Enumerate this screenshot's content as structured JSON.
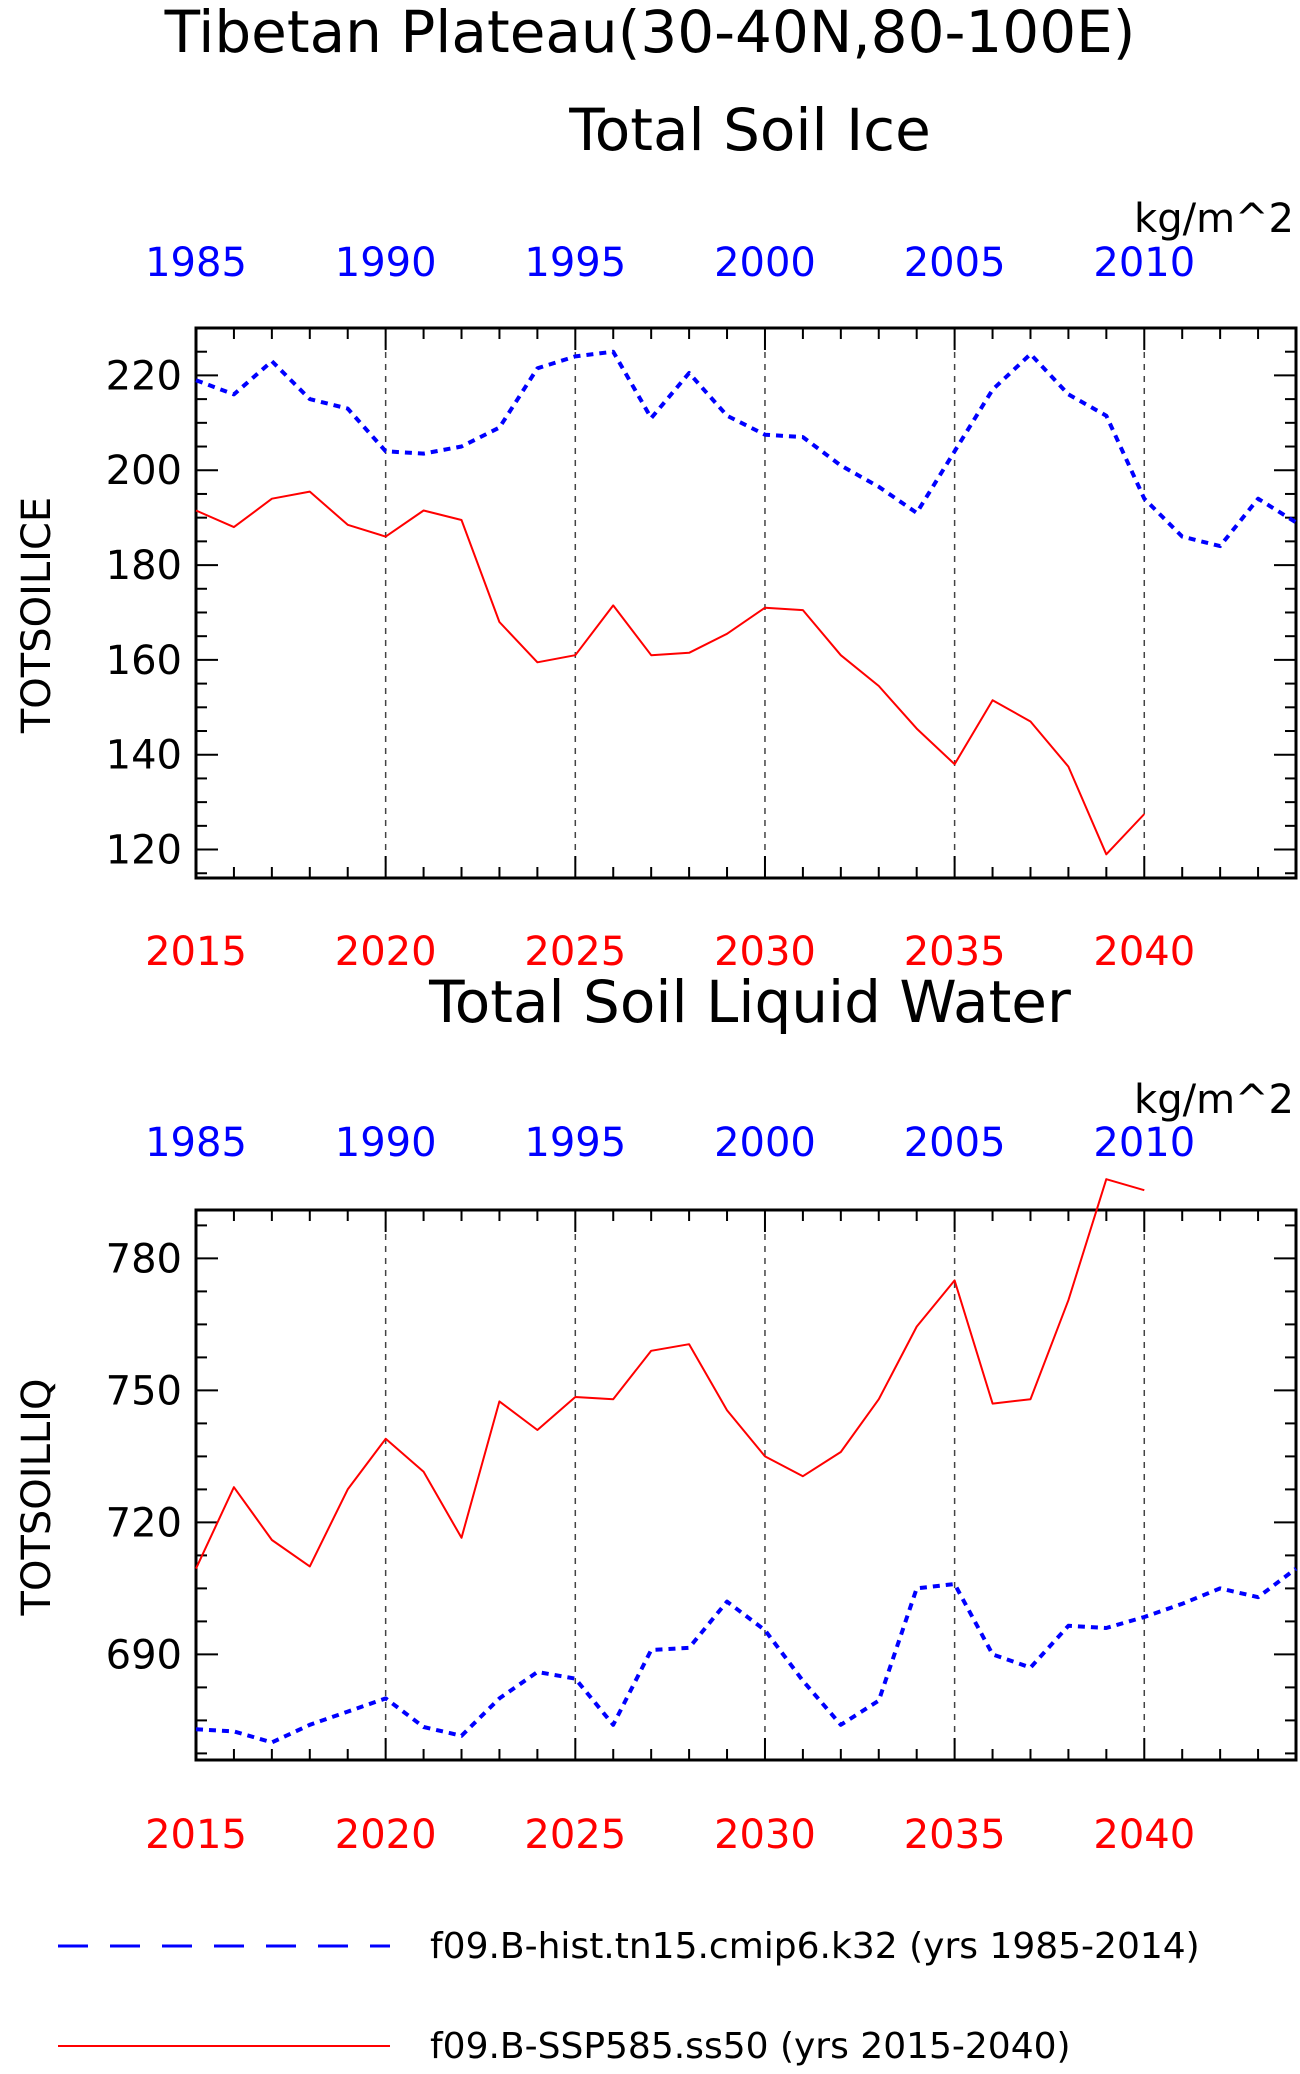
{
  "figure": {
    "title_line1": "Tibetan Plateau(30-40N,80-100E)",
    "hist_color": "#0000ff",
    "ssp_color": "#ff0000"
  },
  "chart_data": [
    {
      "type": "line",
      "title": "Total Soil Ice",
      "ylabel": "TOTSOILICE",
      "units": "kg/m^2",
      "ylim": [
        114,
        230
      ],
      "yticks": [
        120,
        140,
        160,
        180,
        200,
        220
      ],
      "bottom_axis": {
        "ticks": [
          2015,
          2020,
          2025,
          2030,
          2035,
          2040
        ],
        "xlim": [
          2015,
          2044
        ]
      },
      "top_axis": {
        "ticks": [
          1985,
          1990,
          1995,
          2000,
          2005,
          2010
        ],
        "xlim": [
          1985,
          2014
        ]
      },
      "series": [
        {
          "name": "f09.B-hist.tn15.cmip6.k32 (yrs 1985-2014)",
          "style": "dashed",
          "x": [
            1985,
            1986,
            1987,
            1988,
            1989,
            1990,
            1991,
            1992,
            1993,
            1994,
            1995,
            1996,
            1997,
            1998,
            1999,
            2000,
            2001,
            2002,
            2003,
            2004,
            2005,
            2006,
            2007,
            2008,
            2009,
            2010,
            2011,
            2012,
            2013,
            2014
          ],
          "values": [
            219,
            216,
            223,
            215,
            213,
            204,
            203.5,
            205,
            209,
            221.5,
            224,
            225,
            211,
            220.5,
            211.5,
            207.5,
            207,
            201,
            196.5,
            191,
            204,
            217,
            224.5,
            216,
            211.5,
            194,
            186,
            184,
            194,
            189
          ]
        },
        {
          "name": "f09.B-SSP585.ss50 (yrs 2015-2040)",
          "style": "solid",
          "x": [
            2015,
            2016,
            2017,
            2018,
            2019,
            2020,
            2021,
            2022,
            2023,
            2024,
            2025,
            2026,
            2027,
            2028,
            2029,
            2030,
            2031,
            2032,
            2033,
            2034,
            2035,
            2036,
            2037,
            2038,
            2039,
            2040
          ],
          "values": [
            191.5,
            188,
            194,
            195.5,
            188.5,
            186,
            191.5,
            189.5,
            168,
            159.5,
            161,
            171.5,
            161,
            161.5,
            165.5,
            171,
            170.5,
            161,
            154.5,
            145.5,
            138,
            151.5,
            147,
            137.5,
            119,
            127.5
          ]
        }
      ]
    },
    {
      "type": "line",
      "title": "Total Soil Liquid Water",
      "ylabel": "TOTSOILLIQ",
      "units": "kg/m^2",
      "ylim": [
        666,
        791
      ],
      "yticks": [
        690,
        720,
        750,
        780
      ],
      "bottom_axis": {
        "ticks": [
          2015,
          2020,
          2025,
          2030,
          2035,
          2040
        ],
        "xlim": [
          2015,
          2044
        ]
      },
      "top_axis": {
        "ticks": [
          1985,
          1990,
          1995,
          2000,
          2005,
          2010
        ],
        "xlim": [
          1985,
          2014
        ]
      },
      "series": [
        {
          "name": "f09.B-hist.tn15.cmip6.k32 (yrs 1985-2014)",
          "style": "dashed",
          "x": [
            1985,
            1986,
            1987,
            1988,
            1989,
            1990,
            1991,
            1992,
            1993,
            1994,
            1995,
            1996,
            1997,
            1998,
            1999,
            2000,
            2001,
            2002,
            2003,
            2004,
            2005,
            2006,
            2007,
            2008,
            2009,
            2010,
            2011,
            2012,
            2013,
            2014
          ],
          "values": [
            673,
            672.5,
            670,
            674,
            677,
            680,
            673.5,
            671.5,
            680,
            686,
            684.5,
            674,
            691,
            691.5,
            702,
            695.5,
            684,
            674,
            679.5,
            705,
            706,
            690,
            687,
            696.5,
            696,
            698.5,
            701.5,
            705,
            703,
            709.5
          ]
        },
        {
          "name": "f09.B-SSP585.ss50 (yrs 2015-2040)",
          "style": "solid",
          "x": [
            2015,
            2016,
            2017,
            2018,
            2019,
            2020,
            2021,
            2022,
            2023,
            2024,
            2025,
            2026,
            2027,
            2028,
            2029,
            2030,
            2031,
            2032,
            2033,
            2034,
            2035,
            2036,
            2037,
            2038,
            2039,
            2040
          ],
          "values": [
            709.5,
            728,
            716,
            710,
            727.5,
            739,
            731.5,
            716.5,
            747.5,
            741,
            748.5,
            748,
            759,
            760.5,
            745.5,
            735,
            730.5,
            736,
            748,
            764.5,
            775,
            747,
            748,
            770.5,
            798,
            795.5
          ]
        }
      ]
    }
  ],
  "legend": {
    "placement": "bottom-center",
    "entries": [
      {
        "label": "f09.B-hist.tn15.cmip6.k32 (yrs 1985-2014)",
        "style": "dashed",
        "color": "#0000ff"
      },
      {
        "label": "f09.B-SSP585.ss50 (yrs 2015-2040)",
        "style": "solid",
        "color": "#ff0000"
      }
    ]
  }
}
